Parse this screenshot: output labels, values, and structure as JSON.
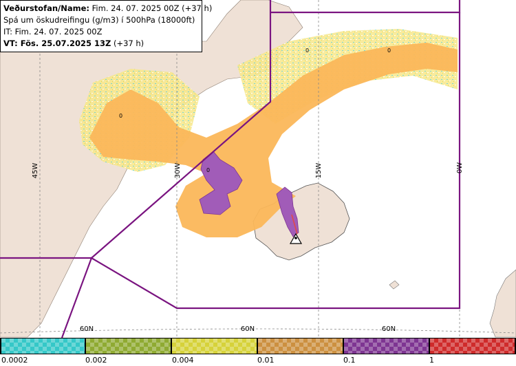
{
  "header": {
    "line1_label": "Veðurstofan/Name:",
    "line1_value": "Fim. 24. 07. 2025 00Z (+37 h)",
    "line2": "Spá um öskudreifingu (g/m3) í 500hPa (18000ft)",
    "line3": "IT: Fim. 24. 07. 2025 00Z",
    "line4_label": "VT: Fös. 25.07.2025 13Z",
    "line4_value": "(+37 h)"
  },
  "grid": {
    "lon_labels": [
      "45W",
      "30W",
      "15W",
      "0W"
    ],
    "lat_labels": [
      "60N",
      "60N",
      "60N"
    ]
  },
  "contour_labels": [
    "0",
    "0",
    "0",
    "0"
  ],
  "legend": {
    "ticks": [
      "0.0002",
      "0.002",
      "0.004",
      "0.01",
      "0.1",
      "1"
    ],
    "colors": [
      "#35c8c8",
      "#8faa32",
      "#d6d23a",
      "#cc9040",
      "#7e3592",
      "#cf2b2b"
    ]
  },
  "colors": {
    "ocean": "#ffffff",
    "land": "#efe1d6",
    "ash_low": "#f7e88a",
    "ash_orange": "#fbb75a",
    "ash_purple": "#a15cb8",
    "boundary": "#7a1480"
  }
}
